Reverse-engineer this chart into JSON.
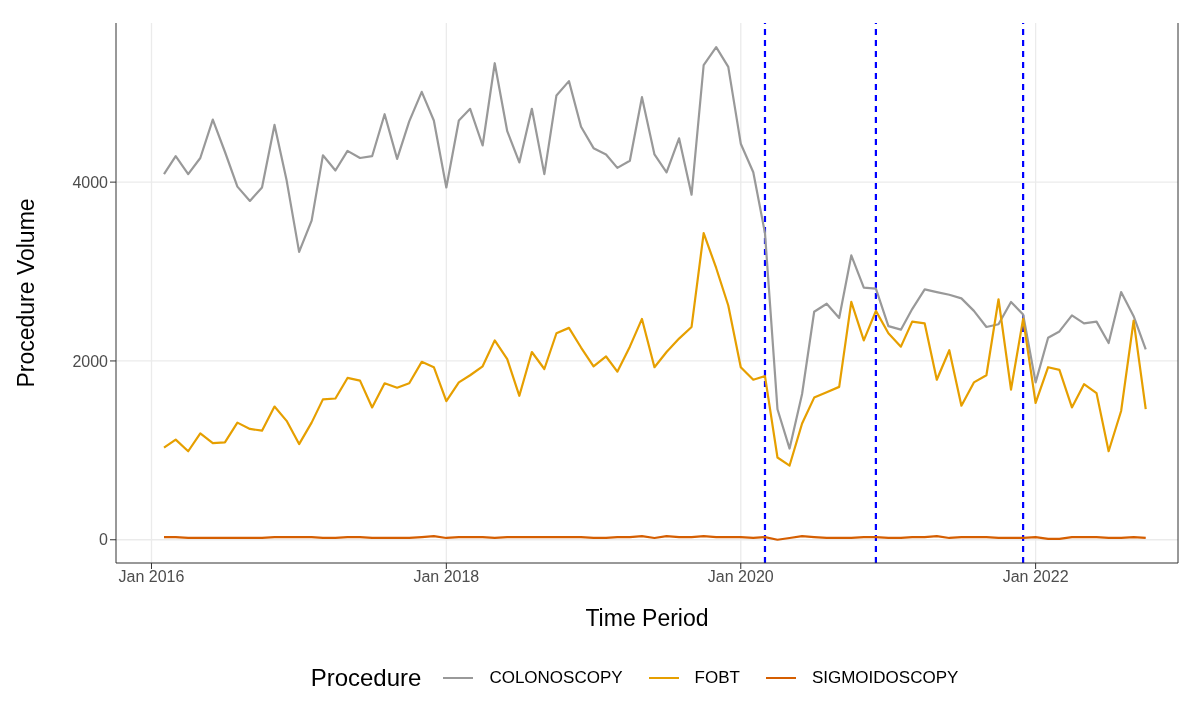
{
  "chart_data": {
    "type": "line",
    "xlabel": "Time Period",
    "ylabel": "Procedure Volume",
    "legend_title": "Procedure",
    "legend": "bottom",
    "grid": true,
    "x": [
      "2016-02",
      "2016-03",
      "2016-04",
      "2016-05",
      "2016-06",
      "2016-07",
      "2016-08",
      "2016-09",
      "2016-10",
      "2016-11",
      "2016-12",
      "2017-01",
      "2017-02",
      "2017-03",
      "2017-04",
      "2017-05",
      "2017-06",
      "2017-07",
      "2017-08",
      "2017-09",
      "2017-10",
      "2017-11",
      "2017-12",
      "2018-01",
      "2018-02",
      "2018-03",
      "2018-04",
      "2018-05",
      "2018-06",
      "2018-07",
      "2018-08",
      "2018-09",
      "2018-10",
      "2018-11",
      "2018-12",
      "2019-01",
      "2019-02",
      "2019-03",
      "2019-04",
      "2019-05",
      "2019-06",
      "2019-07",
      "2019-08",
      "2019-09",
      "2019-10",
      "2019-11",
      "2019-12",
      "2020-01",
      "2020-02",
      "2020-03",
      "2020-04",
      "2020-05",
      "2020-06",
      "2020-07",
      "2020-08",
      "2020-09",
      "2020-10",
      "2020-11",
      "2020-12",
      "2021-01",
      "2021-02",
      "2021-03",
      "2021-04",
      "2021-05",
      "2021-06",
      "2021-07",
      "2021-08",
      "2021-09",
      "2021-10",
      "2021-11",
      "2021-12",
      "2022-01",
      "2022-02",
      "2022-03",
      "2022-04",
      "2022-05",
      "2022-06",
      "2022-07",
      "2022-08",
      "2022-09",
      "2022-10"
    ],
    "xlim": [
      "2015-10-05",
      "2022-12-20"
    ],
    "xticks": [
      {
        "value": "2016-01",
        "label": "Jan 2016"
      },
      {
        "value": "2018-01",
        "label": "Jan 2018"
      },
      {
        "value": "2020-01",
        "label": "Jan 2020"
      },
      {
        "value": "2022-01",
        "label": "Jan 2022"
      }
    ],
    "ylim": [
      -260,
      5780
    ],
    "yticks": [
      0,
      2000,
      4000
    ],
    "series": [
      {
        "name": "COLONOSCOPY",
        "color": "#999999",
        "values": [
          4090,
          4290,
          4090,
          4270,
          4700,
          4340,
          3950,
          3790,
          3940,
          4640,
          4020,
          3220,
          3570,
          4300,
          4130,
          4350,
          4270,
          4290,
          4760,
          4260,
          4680,
          5010,
          4690,
          3940,
          4690,
          4820,
          4410,
          5330,
          4570,
          4220,
          4820,
          4090,
          4970,
          5130,
          4620,
          4380,
          4310,
          4160,
          4240,
          4950,
          4310,
          4110,
          4490,
          3860,
          5310,
          5510,
          5290,
          4430,
          4110,
          3430,
          1460,
          1020,
          1630,
          2550,
          2640,
          2480,
          3180,
          2820,
          2810,
          2390,
          2350,
          2580,
          2800,
          2770,
          2740,
          2700,
          2560,
          2380,
          2410,
          2660,
          2520,
          1760,
          2260,
          2330,
          2510,
          2420,
          2440,
          2200,
          2770,
          2500,
          2130
        ]
      },
      {
        "name": "FOBT",
        "color": "#e69f00",
        "values": [
          1030,
          1120,
          990,
          1190,
          1080,
          1090,
          1310,
          1240,
          1220,
          1490,
          1330,
          1070,
          1310,
          1570,
          1580,
          1810,
          1780,
          1480,
          1750,
          1700,
          1750,
          1990,
          1930,
          1550,
          1760,
          1840,
          1940,
          2230,
          2020,
          1610,
          2100,
          1910,
          2310,
          2370,
          2150,
          1940,
          2050,
          1880,
          2160,
          2470,
          1930,
          2100,
          2250,
          2380,
          3430,
          3040,
          2620,
          1930,
          1790,
          1830,
          920,
          830,
          1300,
          1590,
          1650,
          1710,
          2660,
          2230,
          2560,
          2310,
          2160,
          2440,
          2420,
          1790,
          2120,
          1500,
          1760,
          1840,
          2690,
          1680,
          2470,
          1530,
          1930,
          1900,
          1480,
          1740,
          1640,
          990,
          1440,
          2450,
          1460
        ]
      },
      {
        "name": "SIGMOIDOSCOPY",
        "color": "#d55e00",
        "values": [
          30,
          30,
          20,
          20,
          20,
          20,
          20,
          20,
          20,
          30,
          30,
          30,
          30,
          20,
          20,
          30,
          30,
          20,
          20,
          20,
          20,
          30,
          40,
          20,
          30,
          30,
          30,
          20,
          30,
          30,
          30,
          30,
          30,
          30,
          30,
          20,
          20,
          30,
          30,
          40,
          20,
          40,
          30,
          30,
          40,
          30,
          30,
          30,
          20,
          30,
          0,
          20,
          40,
          30,
          20,
          20,
          20,
          30,
          30,
          20,
          20,
          30,
          30,
          40,
          20,
          30,
          30,
          30,
          20,
          20,
          20,
          30,
          10,
          10,
          30,
          30,
          30,
          20,
          20,
          30,
          20
        ]
      }
    ],
    "ref_lines": [
      {
        "axis": "x",
        "value": "2020-03",
        "color": "#0000ff",
        "line_style": "dashed"
      },
      {
        "axis": "x",
        "value": "2020-12",
        "color": "#0000ff",
        "line_style": "dashed"
      },
      {
        "axis": "x",
        "value": "2021-12",
        "color": "#0000ff",
        "line_style": "dashed"
      }
    ]
  }
}
